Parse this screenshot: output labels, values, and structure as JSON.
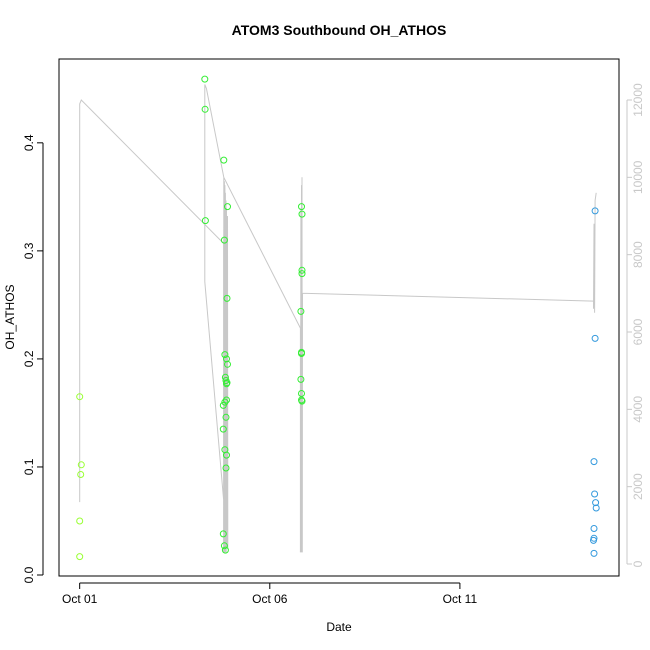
{
  "chart_data": {
    "type": "scatter",
    "title": "ATOM3 Southbound OH_ATHOS",
    "xlabel": "Date",
    "ylabel": "OH_ATHOS",
    "x_tick_labels": [
      "Oct 01",
      "Oct 06",
      "Oct 11"
    ],
    "x_tick_dates": [
      "2016-10-01",
      "2016-10-06",
      "2016-10-11"
    ],
    "xlim": [
      "2016-09-30T16:00",
      "2016-10-15T00:00"
    ],
    "ylim": [
      0,
      0.46
    ],
    "y_ticks": [
      0.0,
      0.1,
      0.2,
      0.3,
      0.4
    ],
    "y_tick_labels": [
      "0.0",
      "0.1",
      "0.2",
      "0.3",
      "0.4"
    ],
    "y2lim": [
      0,
      12800
    ],
    "y2_ticks": [
      0,
      2000,
      4000,
      6000,
      8000,
      10000,
      12000
    ],
    "y2_tick_labels": [
      "0",
      "2000",
      "4000",
      "6000",
      "8000",
      "10000",
      "12000"
    ],
    "grid": false,
    "colors": {
      "axis": "#000000",
      "secondary_axis": "#c8c8c8",
      "altitude_line": "#c8c8c8",
      "lime_points": "#99ff33",
      "green_points": "#33ee33",
      "blue_points": "#3399dd"
    },
    "series": [
      {
        "color_key": "lime_points",
        "points": [
          [
            "2016-10-01T00:00",
            0.165
          ],
          [
            "2016-10-01T01:00",
            0.102
          ],
          [
            "2016-10-01T00:40",
            0.093
          ],
          [
            "2016-10-01T00:00",
            0.05
          ],
          [
            "2016-10-01T00:00",
            0.017
          ]
        ]
      },
      {
        "color_key": "green_points",
        "points": [
          [
            "2016-10-04T07:00",
            0.459
          ],
          [
            "2016-10-04T07:10",
            0.431
          ],
          [
            "2016-10-04T07:20",
            0.328
          ],
          [
            "2016-10-04T19:00",
            0.384
          ],
          [
            "2016-10-04T19:20",
            0.31
          ],
          [
            "2016-10-04T21:20",
            0.341
          ],
          [
            "2016-10-04T21:00",
            0.256
          ],
          [
            "2016-10-04T19:40",
            0.204
          ],
          [
            "2016-10-04T20:40",
            0.2
          ],
          [
            "2016-10-04T21:20",
            0.195
          ],
          [
            "2016-10-04T20:00",
            0.183
          ],
          [
            "2016-10-04T20:20",
            0.18
          ],
          [
            "2016-10-04T20:40",
            0.177
          ],
          [
            "2016-10-04T21:00",
            0.178
          ],
          [
            "2016-10-04T20:40",
            0.162
          ],
          [
            "2016-10-04T19:40",
            0.16
          ],
          [
            "2016-10-04T18:40",
            0.157
          ],
          [
            "2016-10-04T20:20",
            0.146
          ],
          [
            "2016-10-04T18:40",
            0.135
          ],
          [
            "2016-10-04T19:40",
            0.116
          ],
          [
            "2016-10-04T20:40",
            0.111
          ],
          [
            "2016-10-04T20:20",
            0.099
          ],
          [
            "2016-10-04T18:40",
            0.038
          ],
          [
            "2016-10-04T19:20",
            0.027
          ],
          [
            "2016-10-04T20:00",
            0.023
          ],
          [
            "2016-10-06T20:00",
            0.341
          ],
          [
            "2016-10-06T20:20",
            0.334
          ],
          [
            "2016-10-06T20:20",
            0.282
          ],
          [
            "2016-10-06T20:20",
            0.279
          ],
          [
            "2016-10-06T19:40",
            0.244
          ],
          [
            "2016-10-06T20:00",
            0.206
          ],
          [
            "2016-10-06T20:00",
            0.205
          ],
          [
            "2016-10-06T19:40",
            0.181
          ],
          [
            "2016-10-06T20:00",
            0.168
          ],
          [
            "2016-10-06T20:00",
            0.162
          ],
          [
            "2016-10-06T20:20",
            0.161
          ]
        ]
      },
      {
        "color_key": "blue_points",
        "points": [
          [
            "2016-10-14T13:20",
            0.337
          ],
          [
            "2016-10-14T13:20",
            0.219
          ],
          [
            "2016-10-14T12:40",
            0.105
          ],
          [
            "2016-10-14T13:00",
            0.075
          ],
          [
            "2016-10-14T13:40",
            0.067
          ],
          [
            "2016-10-14T14:00",
            0.062
          ],
          [
            "2016-10-14T12:40",
            0.043
          ],
          [
            "2016-10-14T12:40",
            0.034
          ],
          [
            "2016-10-14T12:20",
            0.032
          ],
          [
            "2016-10-14T12:40",
            0.02
          ]
        ]
      }
    ],
    "altitude_line": {
      "axis": "right",
      "points": [
        [
          "2016-10-01T00:00",
          1600
        ],
        [
          "2016-10-01T00:00",
          11900
        ],
        [
          "2016-10-01T01:00",
          12000
        ],
        [
          "2016-10-04T18:40",
          8300
        ],
        [
          "2016-10-04T18:50",
          8300
        ],
        [
          "2016-10-04T18:50",
          300
        ],
        [
          "2016-10-04T19:00",
          10000
        ],
        [
          "2016-10-04T19:10",
          300
        ],
        [
          "2016-10-04T19:20",
          9900
        ],
        [
          "2016-10-04T19:30",
          300
        ],
        [
          "2016-10-04T19:40",
          9800
        ],
        [
          "2016-10-04T19:50",
          300
        ],
        [
          "2016-10-04T20:00",
          9600
        ],
        [
          "2016-10-04T20:10",
          300
        ],
        [
          "2016-10-04T20:20",
          9400
        ],
        [
          "2016-10-04T20:30",
          300
        ],
        [
          "2016-10-04T20:40",
          9200
        ],
        [
          "2016-10-04T21:00",
          400
        ],
        [
          "2016-10-04T21:20",
          9000
        ],
        [
          "2016-10-04T21:30",
          400
        ],
        [
          "2016-10-04T07:00",
          7300
        ],
        [
          "2016-10-04T07:00",
          12400
        ],
        [
          "2016-10-04T08:00",
          12300
        ],
        [
          "2016-10-04T19:00",
          10000
        ],
        [
          "2016-10-06T19:20",
          6100
        ],
        [
          "2016-10-06T19:20",
          300
        ],
        [
          "2016-10-06T19:40",
          9200
        ],
        [
          "2016-10-06T19:50",
          300
        ],
        [
          "2016-10-06T20:00",
          9800
        ],
        [
          "2016-10-06T20:10",
          300
        ],
        [
          "2016-10-06T20:20",
          10000
        ],
        [
          "2016-10-06T20:30",
          300
        ],
        [
          "2016-10-06T20:40",
          7000
        ],
        [
          "2016-10-14T12:20",
          6800
        ],
        [
          "2016-10-14T12:20",
          6600
        ],
        [
          "2016-10-14T12:40",
          8800
        ],
        [
          "2016-10-14T13:00",
          6500
        ],
        [
          "2016-10-14T13:20",
          9400
        ],
        [
          "2016-10-14T14:00",
          9600
        ]
      ]
    }
  }
}
